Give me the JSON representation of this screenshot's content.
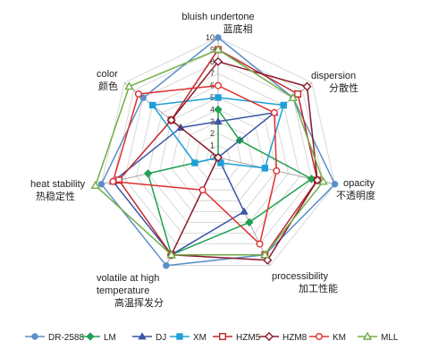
{
  "chart_data": {
    "type": "radar",
    "axes": [
      {
        "label": "bluish undertone",
        "sublabel": "蓝底相"
      },
      {
        "label": "dispersion",
        "sublabel": "分散性"
      },
      {
        "label": "opacity",
        "sublabel": "不透明度"
      },
      {
        "label": "processibility",
        "sublabel": "加工性能"
      },
      {
        "label": "volatile at high temperature",
        "sublabel": "高温挥发分"
      },
      {
        "label": "heat stability",
        "sublabel": "热稳定性"
      },
      {
        "label": "color",
        "sublabel": "颜色"
      }
    ],
    "rmin": 0,
    "rmax": 10,
    "ticks": [
      "0",
      "1",
      "2",
      "3",
      "4",
      "5",
      "6",
      "7",
      "8",
      "9",
      "10"
    ],
    "grid": true,
    "legend_position": "bottom",
    "series": [
      {
        "name": "DR-2588",
        "color": "#5B8FC9",
        "marker": "circle",
        "values": [
          10,
          8,
          10,
          9,
          10,
          10,
          8
        ]
      },
      {
        "name": "LM",
        "color": "#20A050",
        "marker": "diamond",
        "values": [
          4,
          2.3,
          8,
          6,
          9,
          6,
          0
        ]
      },
      {
        "name": "DJ",
        "color": "#3A55A5",
        "marker": "triangle",
        "values": [
          3,
          6,
          0,
          5,
          9,
          9,
          4
        ]
      },
      {
        "name": "XM",
        "color": "#1E9FD8",
        "marker": "square",
        "values": [
          5,
          7,
          4,
          0.5,
          0,
          2,
          7
        ]
      },
      {
        "name": "HZM5",
        "color": "#C0282D",
        "marker": "square-open",
        "values": [
          9,
          8.5,
          8.5,
          9,
          9,
          8.5,
          5
        ]
      },
      {
        "name": "HZM8",
        "color": "#8B1A2B",
        "marker": "diamond-open",
        "values": [
          8,
          9.5,
          8.5,
          9.5,
          9,
          0,
          5
        ]
      },
      {
        "name": "KM",
        "color": "#E03030",
        "marker": "circle-open",
        "values": [
          6,
          6,
          5,
          8,
          3,
          9,
          8.5
        ]
      },
      {
        "name": "MLL",
        "color": "#70AD47",
        "marker": "triangle-open",
        "values": [
          9,
          8,
          9,
          9,
          9,
          10.5,
          9.5
        ]
      }
    ]
  }
}
